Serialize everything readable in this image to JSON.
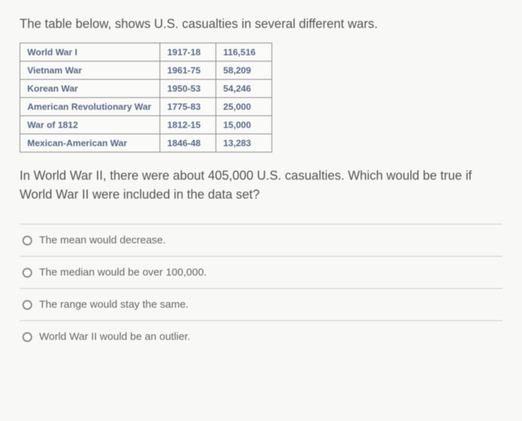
{
  "intro": "The table below, shows U.S. casualties in several different wars.",
  "table": {
    "rows": [
      {
        "war": "World War I",
        "years": "1917-18",
        "casualties": "116,516"
      },
      {
        "war": "Vietnam War",
        "years": "1961-75",
        "casualties": "58,209"
      },
      {
        "war": "Korean War",
        "years": "1950-53",
        "casualties": "54,246"
      },
      {
        "war": "American Revolutionary War",
        "years": "1775-83",
        "casualties": "25,000"
      },
      {
        "war": "War of 1812",
        "years": "1812-15",
        "casualties": "15,000"
      },
      {
        "war": "Mexican-American War",
        "years": "1846-48",
        "casualties": "13,283"
      }
    ],
    "border_color": "#888",
    "cell_text_color": "#5a6a8a",
    "cell_bg": "#fafaf8",
    "font_size": 13
  },
  "question": "In World War II, there were about 405,000 U.S. casualties. Which would be true if World War II were included in the data set?",
  "options": [
    "The mean would decrease.",
    "The median would be over 100,000.",
    "The range would stay the same.",
    "World War II would be an outlier."
  ],
  "styling": {
    "page_bg": "#f8f8f6",
    "text_color": "#555",
    "option_text_color": "#666",
    "divider_color": "#ccc",
    "intro_fontsize": 18,
    "question_fontsize": 18,
    "option_fontsize": 15,
    "radio_border": "#888"
  }
}
